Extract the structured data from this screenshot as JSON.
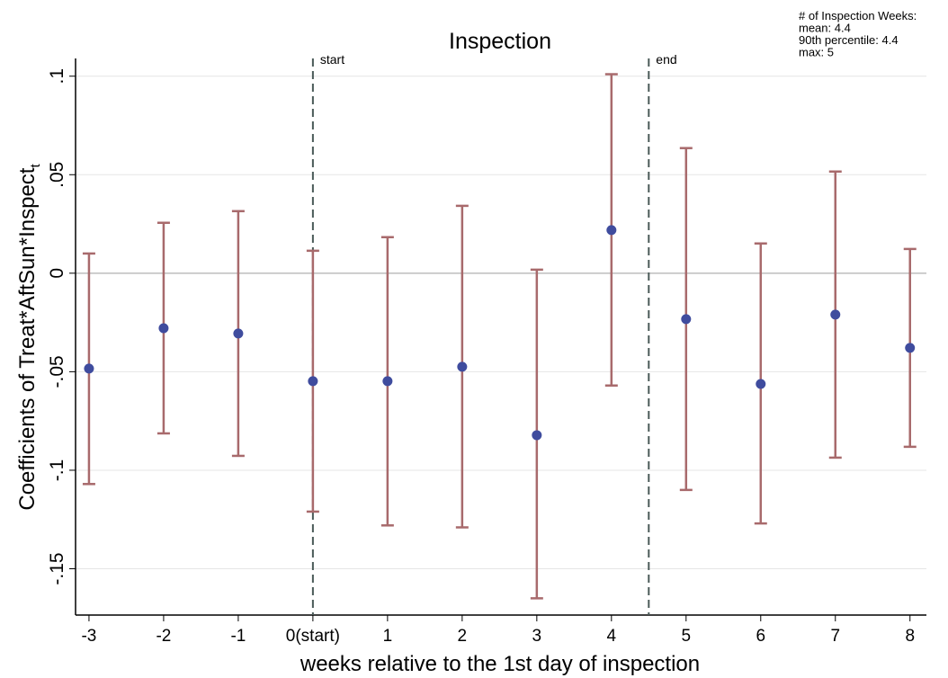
{
  "chart_data": {
    "type": "errorbar",
    "title": "Inspection",
    "xlabel": "weeks relative to the 1st day of inspection",
    "ylabel": "Coefficients of Treat*AftSun*Inspect",
    "ylabel_subscript": "t",
    "annotation": [
      "# of Inspection Weeks:",
      "mean: 4.4",
      "90th percentile: 4.4",
      "max: 5"
    ],
    "vlines": [
      {
        "x": 0,
        "label": "start"
      },
      {
        "x": 4.5,
        "label": "end"
      }
    ],
    "x": [
      -3,
      -2,
      -1,
      0,
      1,
      2,
      3,
      4,
      5,
      6,
      7,
      8
    ],
    "series": [
      {
        "point_color": "#3f4c9e",
        "bar_color": "#a86a6c",
        "values": [
          -0.0484,
          -0.0279,
          -0.0306,
          -0.0548,
          -0.0548,
          -0.0475,
          -0.0822,
          0.0219,
          -0.0233,
          -0.0562,
          -0.021,
          -0.0379
        ],
        "lower": [
          -0.107,
          -0.0813,
          -0.0927,
          -0.121,
          -0.128,
          -0.129,
          -0.165,
          -0.057,
          -0.11,
          -0.127,
          -0.0936,
          -0.0881
        ],
        "upper": [
          0.01,
          0.0256,
          0.0315,
          0.0114,
          0.0183,
          0.0342,
          0.0018,
          0.101,
          0.0635,
          0.0151,
          0.0516,
          0.0123
        ]
      }
    ],
    "xlim": [
      -3.18,
      8.22
    ],
    "xticks": [
      -3,
      -2,
      -1,
      {
        "value": 0,
        "label": "0(start)"
      },
      1,
      2,
      3,
      4,
      5,
      6,
      7,
      8
    ],
    "ylim": [
      -0.1735,
      0.109
    ],
    "yticks": [
      {
        "value": 0.1,
        "label": ".1"
      },
      {
        "value": 0.05,
        "label": ".05"
      },
      0,
      {
        "value": -0.05,
        "label": "-.05"
      },
      {
        "value": -0.1,
        "label": "-.1"
      },
      {
        "value": -0.15,
        "label": "-.15"
      }
    ],
    "grid": true
  }
}
